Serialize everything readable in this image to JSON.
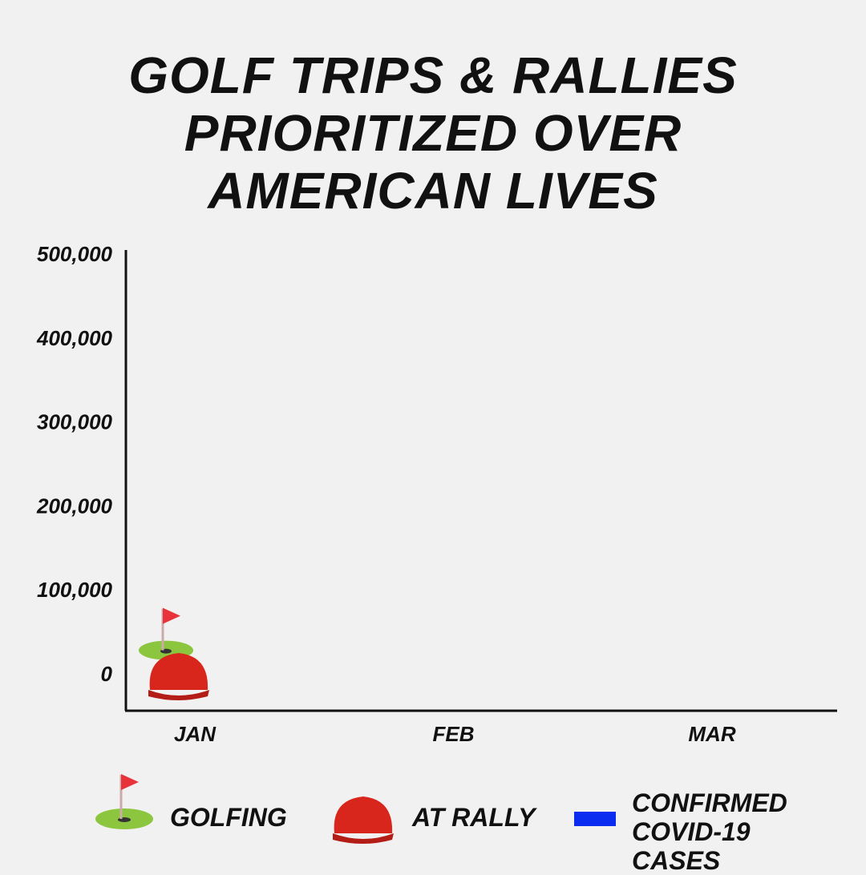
{
  "chart_data": {
    "type": "marker",
    "title": "GOLF TRIPS & RALLIES PRIORITIZED OVER AMERICAN LIVES",
    "categories": [
      "JAN",
      "FEB",
      "MAR"
    ],
    "series": [
      {
        "name": "GOLFING",
        "color": "#8cc63f",
        "values": [
          30000,
          null,
          null
        ]
      },
      {
        "name": "AT RALLY",
        "color": "#d9261c",
        "values": [
          0,
          null,
          null
        ]
      },
      {
        "name": "CONFIRMED COVID-19 CASES",
        "color": "#0a2cf0",
        "values": [
          0,
          null,
          null
        ]
      }
    ],
    "ylim": [
      -42000,
      507000
    ],
    "yticks": [
      0,
      {
        "value": 100000,
        "label": "100,000"
      },
      {
        "value": 200000,
        "label": "200,000"
      },
      {
        "value": 300000,
        "label": "300,000"
      },
      {
        "value": 400000,
        "label": "400,000"
      },
      {
        "value": 500000,
        "label": "500,000"
      }
    ],
    "grid": false
  }
}
